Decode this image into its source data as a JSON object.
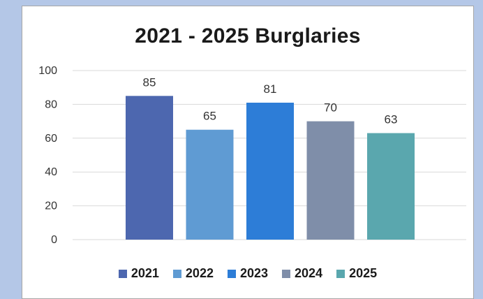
{
  "chart_data": {
    "type": "bar",
    "title": "2021 - 2025 Burglaries",
    "xlabel": "",
    "ylabel": "",
    "ylim": [
      0,
      100
    ],
    "yticks": [
      0,
      20,
      40,
      60,
      80,
      100
    ],
    "grid": true,
    "legend_position": "bottom",
    "series": [
      {
        "name": "2021",
        "values": [
          85
        ],
        "color": "#4d67af"
      },
      {
        "name": "2022",
        "values": [
          65
        ],
        "color": "#5f9bd3"
      },
      {
        "name": "2023",
        "values": [
          81
        ],
        "color": "#2d7dd7"
      },
      {
        "name": "2024",
        "values": [
          70
        ],
        "color": "#7f8ea9"
      },
      {
        "name": "2025",
        "values": [
          63
        ],
        "color": "#5aa7ae"
      }
    ],
    "data_labels": [
      "85",
      "65",
      "81",
      "70",
      "63"
    ]
  }
}
